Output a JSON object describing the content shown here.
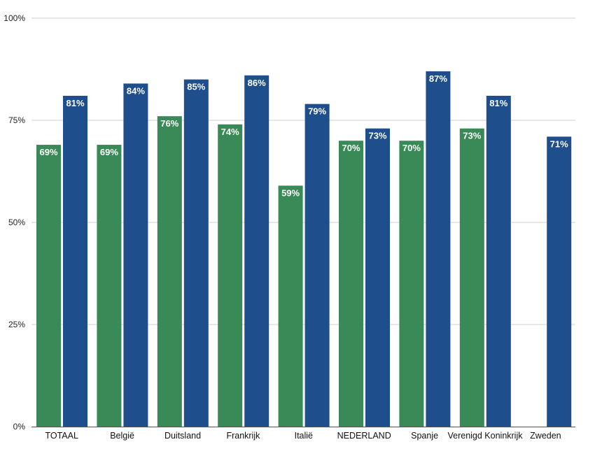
{
  "chart_data": {
    "type": "bar",
    "title": "",
    "xlabel": "",
    "ylabel": "",
    "ylim": [
      0,
      100
    ],
    "yticks": [
      0,
      25,
      50,
      75,
      100
    ],
    "ytick_labels": [
      "0%",
      "25%",
      "50%",
      "75%",
      "100%"
    ],
    "grid": "horizontal",
    "legend": "none",
    "categories": [
      "TOTAAL",
      "België",
      "Duitsland",
      "Frankrijk",
      "Italië",
      "NEDERLAND",
      "Spanje",
      "Verenigd Koninkrijk",
      "Zweden"
    ],
    "series": [
      {
        "color": "#3a8a57",
        "values": [
          69,
          69,
          76,
          74,
          59,
          70,
          70,
          73,
          null
        ],
        "labels": [
          "69%",
          "69%",
          "76%",
          "74%",
          "59%",
          "70%",
          "70%",
          "73%",
          ""
        ]
      },
      {
        "color": "#1f4e8c",
        "values": [
          81,
          84,
          85,
          86,
          79,
          73,
          87,
          81,
          71
        ],
        "labels": [
          "81%",
          "84%",
          "85%",
          "86%",
          "79%",
          "73%",
          "87%",
          "81%",
          "71%"
        ]
      }
    ]
  }
}
